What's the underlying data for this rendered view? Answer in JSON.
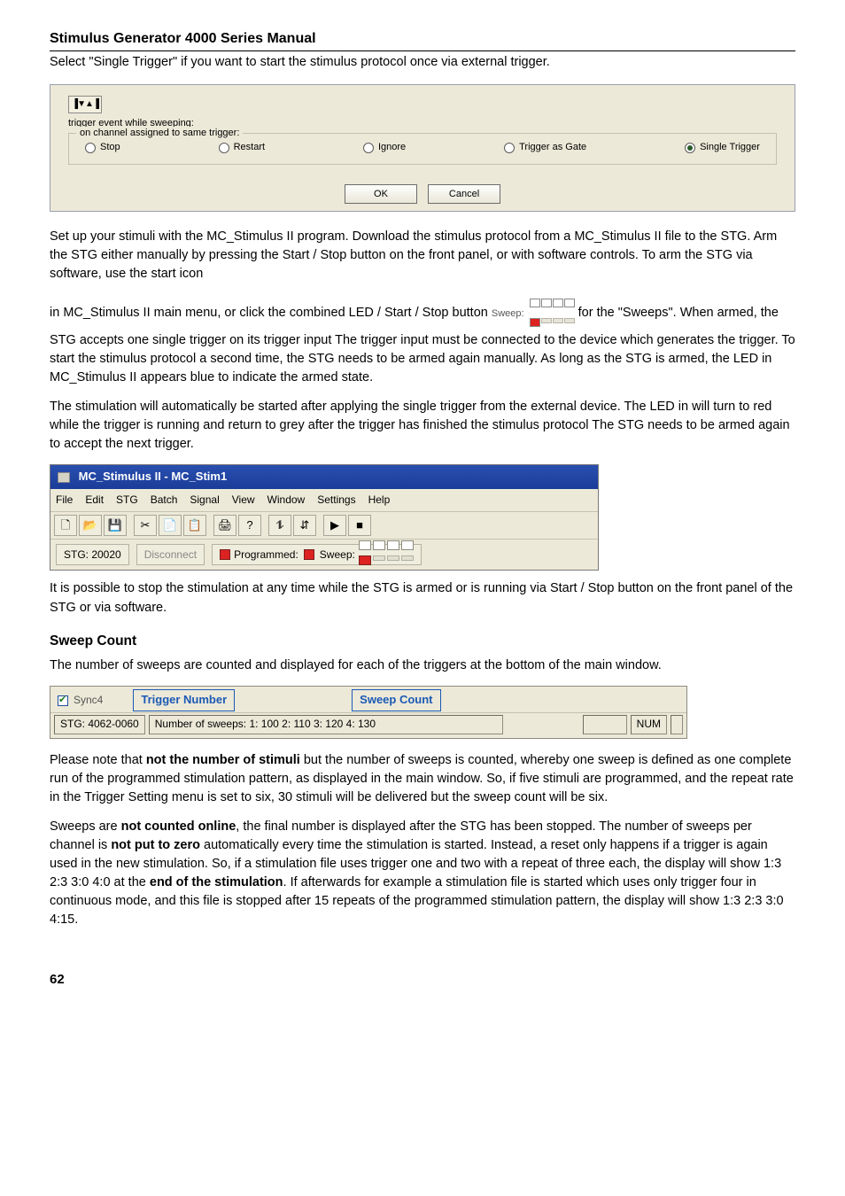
{
  "header": "Stimulus Generator 4000 Series Manual",
  "para1": "Select \"Single Trigger\" if you want to start the stimulus protocol once via external trigger.",
  "dialog": {
    "play_glyph": "▐▼▲▐",
    "sweep_label": "trigger event while sweeping:",
    "group_legend": "on channel assigned to same trigger:",
    "options": [
      "Stop",
      "Restart",
      "Ignore",
      "Trigger as Gate",
      "Single Trigger"
    ],
    "selected_index": 4,
    "ok": "OK",
    "cancel": "Cancel"
  },
  "para2a": "Set up your stimuli with the MC_Stimulus II program. Download the stimulus protocol from a MC_Stimulus II file to the STG. Arm the STG either manually by pressing the Start / Stop button on the front panel, or with software controls. To arm the STG via software, use the start icon",
  "para2b_pre": "in MC_Stimulus II main menu, or click the combined LED / Start / Stop button ",
  "sweep_inline_label": "Sweep:",
  "para2b_post": " for the \"Sweeps\". When armed, the STG accepts one single trigger on its trigger input The trigger input must be connected to the device which generates the trigger. To start the stimulus protocol a second time, the STG needs to be armed again manually. As long as the STG is armed, the LED in MC_Stimulus II appears blue to indicate the armed state.",
  "para3": "The stimulation will automatically be started after applying the single trigger from the external device. The LED in will turn to red while the trigger is running and return to grey after the trigger has finished the stimulus protocol The STG needs to be armed again to accept the next trigger.",
  "toolbar": {
    "title": "MC_Stimulus II - MC_Stim1",
    "menus": [
      "File",
      "Edit",
      "STG",
      "Batch",
      "Signal",
      "View",
      "Window",
      "Settings",
      "Help"
    ],
    "buttons": [
      "🗋",
      "📂",
      "💾",
      "✂",
      "📄",
      "📋",
      "🖨",
      "?",
      "⥮",
      "⇵",
      "▶",
      "■"
    ],
    "status_stg": "STG: 20020",
    "disconnect": "Disconnect",
    "programmed": "Programmed:",
    "sweep": "Sweep:"
  },
  "para4": "It is possible to stop the stimulation at any time while the STG is armed or is running via Start / Stop button on the front panel of the STG or via software.",
  "section_heading": "Sweep Count",
  "para5": "The number of sweeps are counted and displayed for each of the triggers at the bottom of the main window.",
  "sweepcount": {
    "sync": "Sync4",
    "trigger_label": "Trigger Number",
    "sweep_label": "Sweep Count",
    "stg": "STG: 4062-0060",
    "sweeps": "Number of sweeps: 1: 100 2: 110 3: 120 4: 130",
    "num": "NUM"
  },
  "para6_pre": "Please note that ",
  "para6_bold1": "not the number of stimuli",
  "para6_post": " but the number of sweeps is counted, whereby one sweep is defined as one complete run of the programmed stimulation pattern, as displayed in the main window. So, if five stimuli are programmed, and the repeat rate in the Trigger Setting menu is set to six, 30 stimuli will be delivered but the sweep count will be six.",
  "para7_a": "Sweeps are ",
  "para7_b1": "not counted online",
  "para7_b": ", the final number is displayed after the STG has been stopped. The number of sweeps per channel is ",
  "para7_b2": "not put to zero",
  "para7_c": " automatically every time the stimulation is started. Instead, a reset only happens if a trigger is again used in the new stimulation. So, if a stimulation file uses trigger one and two with a repeat of three each, the display will show 1:3 2:3 3:0 4:0 at the ",
  "para7_b3": "end of the stimulation",
  "para7_d": ". If afterwards for example a stimulation file is started which uses only trigger four in continuous mode, and this file is stopped after 15 repeats of the programmed stimulation pattern, the display will show 1:3 2:3 3:0 4:15.",
  "page_number": "62"
}
